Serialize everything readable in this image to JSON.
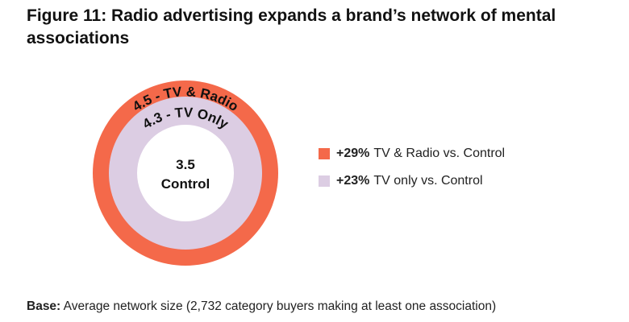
{
  "title": "Figure 11: Radio advertising expands a brand’s network of mental associations",
  "chart_data": {
    "type": "nested-circle",
    "rings": [
      {
        "value": 4.5,
        "label": "4.5 - TV & Radio",
        "color": "#f4694a"
      },
      {
        "value": 4.3,
        "label": "4.3 - TV Only",
        "color": "#dccde3"
      },
      {
        "value": 3.5,
        "label": "Control",
        "color": "#ffffff"
      }
    ],
    "center_value": "3.5",
    "center_label": "Control"
  },
  "legend": [
    {
      "pct": "+29%",
      "text": "TV & Radio vs. Control",
      "color": "#f4694a"
    },
    {
      "pct": "+23%",
      "text": "TV only vs. Control",
      "color": "#dccde3"
    }
  ],
  "base": {
    "label": "Base:",
    "text": "Average network size (2,732 category buyers making at least one association)"
  }
}
